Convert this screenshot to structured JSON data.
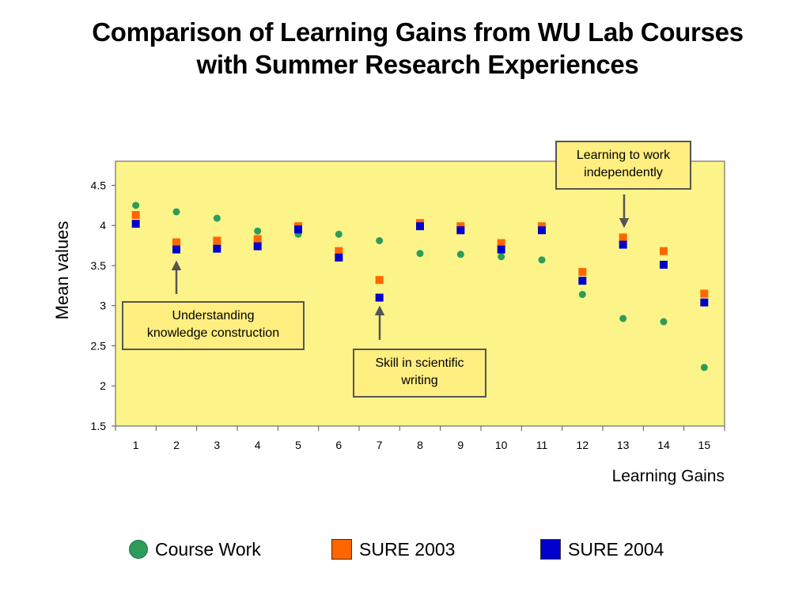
{
  "title": {
    "line1": "Comparison of Learning Gains from WU Lab Courses",
    "line2": "with Summer Research Experiences"
  },
  "colors": {
    "plot_bg": "#fcf488",
    "course_work": "#2e9b5b",
    "sure_2003": "#ff6600",
    "sure_2004": "#0000cc",
    "callout_bg": "#ffee80"
  },
  "chart_data": {
    "type": "scatter",
    "xlabel": "Learning Gains",
    "ylabel": "Mean values",
    "x": [
      1,
      2,
      3,
      4,
      5,
      6,
      7,
      8,
      9,
      10,
      11,
      12,
      13,
      14,
      15
    ],
    "x_ticks": [
      "1",
      "2",
      "3",
      "4",
      "5",
      "6",
      "7",
      "8",
      "9",
      "10",
      "11",
      "12",
      "13",
      "14",
      "15"
    ],
    "y_ticks": [
      "1.5",
      "2",
      "2.5",
      "3",
      "3.5",
      "4",
      "4.5"
    ],
    "ylim": [
      1.5,
      4.8
    ],
    "grid": false,
    "legend_position": "bottom",
    "series": [
      {
        "name": "Course Work",
        "marker": "circle",
        "values": [
          4.25,
          4.17,
          4.09,
          3.93,
          3.89,
          3.89,
          3.81,
          3.65,
          3.64,
          3.61,
          3.57,
          3.14,
          2.84,
          2.8,
          2.23
        ]
      },
      {
        "name": "SURE 2003",
        "marker": "square",
        "values": [
          4.13,
          3.79,
          3.81,
          3.83,
          3.99,
          3.68,
          3.32,
          4.03,
          3.99,
          3.78,
          3.99,
          3.42,
          3.85,
          3.68,
          3.15
        ]
      },
      {
        "name": "SURE 2004",
        "marker": "square",
        "values": [
          4.02,
          3.7,
          3.71,
          3.74,
          3.95,
          3.6,
          3.1,
          3.99,
          3.94,
          3.7,
          3.94,
          3.31,
          3.76,
          3.51,
          3.04
        ]
      }
    ],
    "annotations": [
      {
        "text_lines": [
          "Learning to work",
          "independently"
        ],
        "x": 13,
        "y": 3.9
      },
      {
        "text_lines": [
          "Understanding",
          "knowledge construction"
        ],
        "x": 2,
        "y": 3.62
      },
      {
        "text_lines": [
          "Skill in scientific",
          "writing"
        ],
        "x": 7,
        "y": 3.02
      }
    ]
  }
}
